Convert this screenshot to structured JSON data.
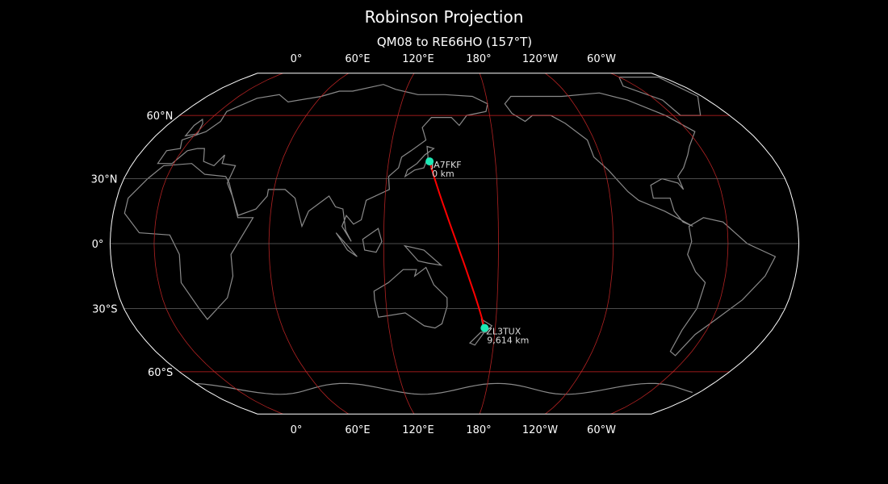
{
  "title": "Robinson Projection",
  "subtitle": "QM08 to RE66HO (157°T)",
  "map": {
    "projection": "robinson",
    "central_longitude": 157,
    "background": "#000000",
    "coastline_color": "#8a8a8a",
    "meridian_color": "#b22222",
    "parallel_colors": {
      "60": "#cc2222",
      "30": "#666666",
      "0": "#666666"
    },
    "meridians": [
      0,
      60,
      120,
      180,
      -120,
      -60
    ],
    "parallels": [
      60,
      30,
      0,
      -30,
      -60
    ],
    "lon_labels": [
      "0°",
      "60°E",
      "120°E",
      "180°",
      "120°W",
      "60°W"
    ],
    "lat_labels": [
      "60°N",
      "30°N",
      "0°",
      "30°S",
      "60°S"
    ]
  },
  "path": {
    "color": "#ff0000",
    "from": {
      "lon": 143,
      "lat": 38
    },
    "to": {
      "lon": 174,
      "lat": -39
    }
  },
  "markers": [
    {
      "call": "JA7FKF",
      "distance": "0 km",
      "lon": 143,
      "lat": 38,
      "color": "#1de9b6"
    },
    {
      "call": "ZL3TUX",
      "distance": "9,614 km",
      "lon": 174,
      "lat": -39,
      "color": "#1de9b6"
    }
  ]
}
